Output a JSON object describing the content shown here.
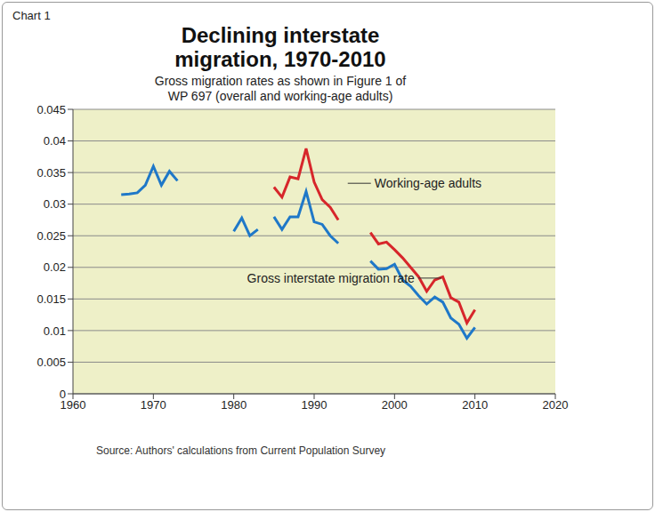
{
  "chart_data": {
    "type": "line",
    "chart_label": "Chart 1",
    "title": "Declining interstate migration, 1970-2010",
    "subtitle": "Gross migration rates as shown in Figure 1 of WP 697 (overall and working-age adults)",
    "source": "Source: Authors' calculations from Current Population Survey",
    "x": [
      1966,
      1967,
      1968,
      1969,
      1970,
      1971,
      1972,
      1973,
      1974,
      1980,
      1981,
      1982,
      1983,
      1984,
      1985,
      1986,
      1987,
      1988,
      1989,
      1990,
      1991,
      1992,
      1993,
      1994,
      1997,
      1998,
      1999,
      2000,
      2001,
      2002,
      2003,
      2004,
      2005,
      2006,
      2007,
      2008,
      2009,
      2010
    ],
    "series": [
      {
        "name": "Gross interstate migration rate",
        "color": "#1f78c8",
        "values": [
          0.0315,
          0.0316,
          0.0318,
          0.033,
          0.036,
          0.033,
          0.0352,
          0.0337,
          null,
          0.0257,
          0.0278,
          0.025,
          0.026,
          null,
          0.028,
          0.026,
          0.028,
          0.028,
          0.032,
          0.0272,
          0.0268,
          0.025,
          0.0238,
          null,
          0.021,
          0.0197,
          0.0198,
          0.0205,
          0.018,
          0.017,
          0.0155,
          0.0142,
          0.0153,
          0.0145,
          0.012,
          0.011,
          0.0088,
          0.0105
        ]
      },
      {
        "name": "Working-age adults",
        "color": "#d7262b",
        "values": [
          null,
          null,
          null,
          null,
          null,
          null,
          null,
          null,
          null,
          null,
          null,
          null,
          null,
          null,
          0.0327,
          0.0311,
          0.0343,
          0.034,
          0.0388,
          0.0335,
          0.0307,
          0.0295,
          0.0275,
          null,
          0.0255,
          0.0237,
          0.024,
          0.0228,
          0.0215,
          0.02,
          0.0185,
          0.0162,
          0.018,
          0.0185,
          0.0152,
          0.0145,
          0.0112,
          0.0133
        ]
      }
    ],
    "annotations": [
      {
        "text": "Working-age adults",
        "x": 1997.5,
        "y": 0.0333
      },
      {
        "text": "Gross interstate migration rate",
        "x": 2002.5,
        "y": 0.0183
      }
    ],
    "xlim": [
      1960,
      2020
    ],
    "xticks": [
      1960,
      1970,
      1980,
      1990,
      2000,
      2010,
      2020
    ],
    "ylim": [
      0,
      0.045
    ],
    "yticks": [
      0,
      0.005,
      0.01,
      0.015,
      0.02,
      0.025,
      0.03,
      0.035,
      0.04,
      0.045
    ],
    "grid": true
  }
}
